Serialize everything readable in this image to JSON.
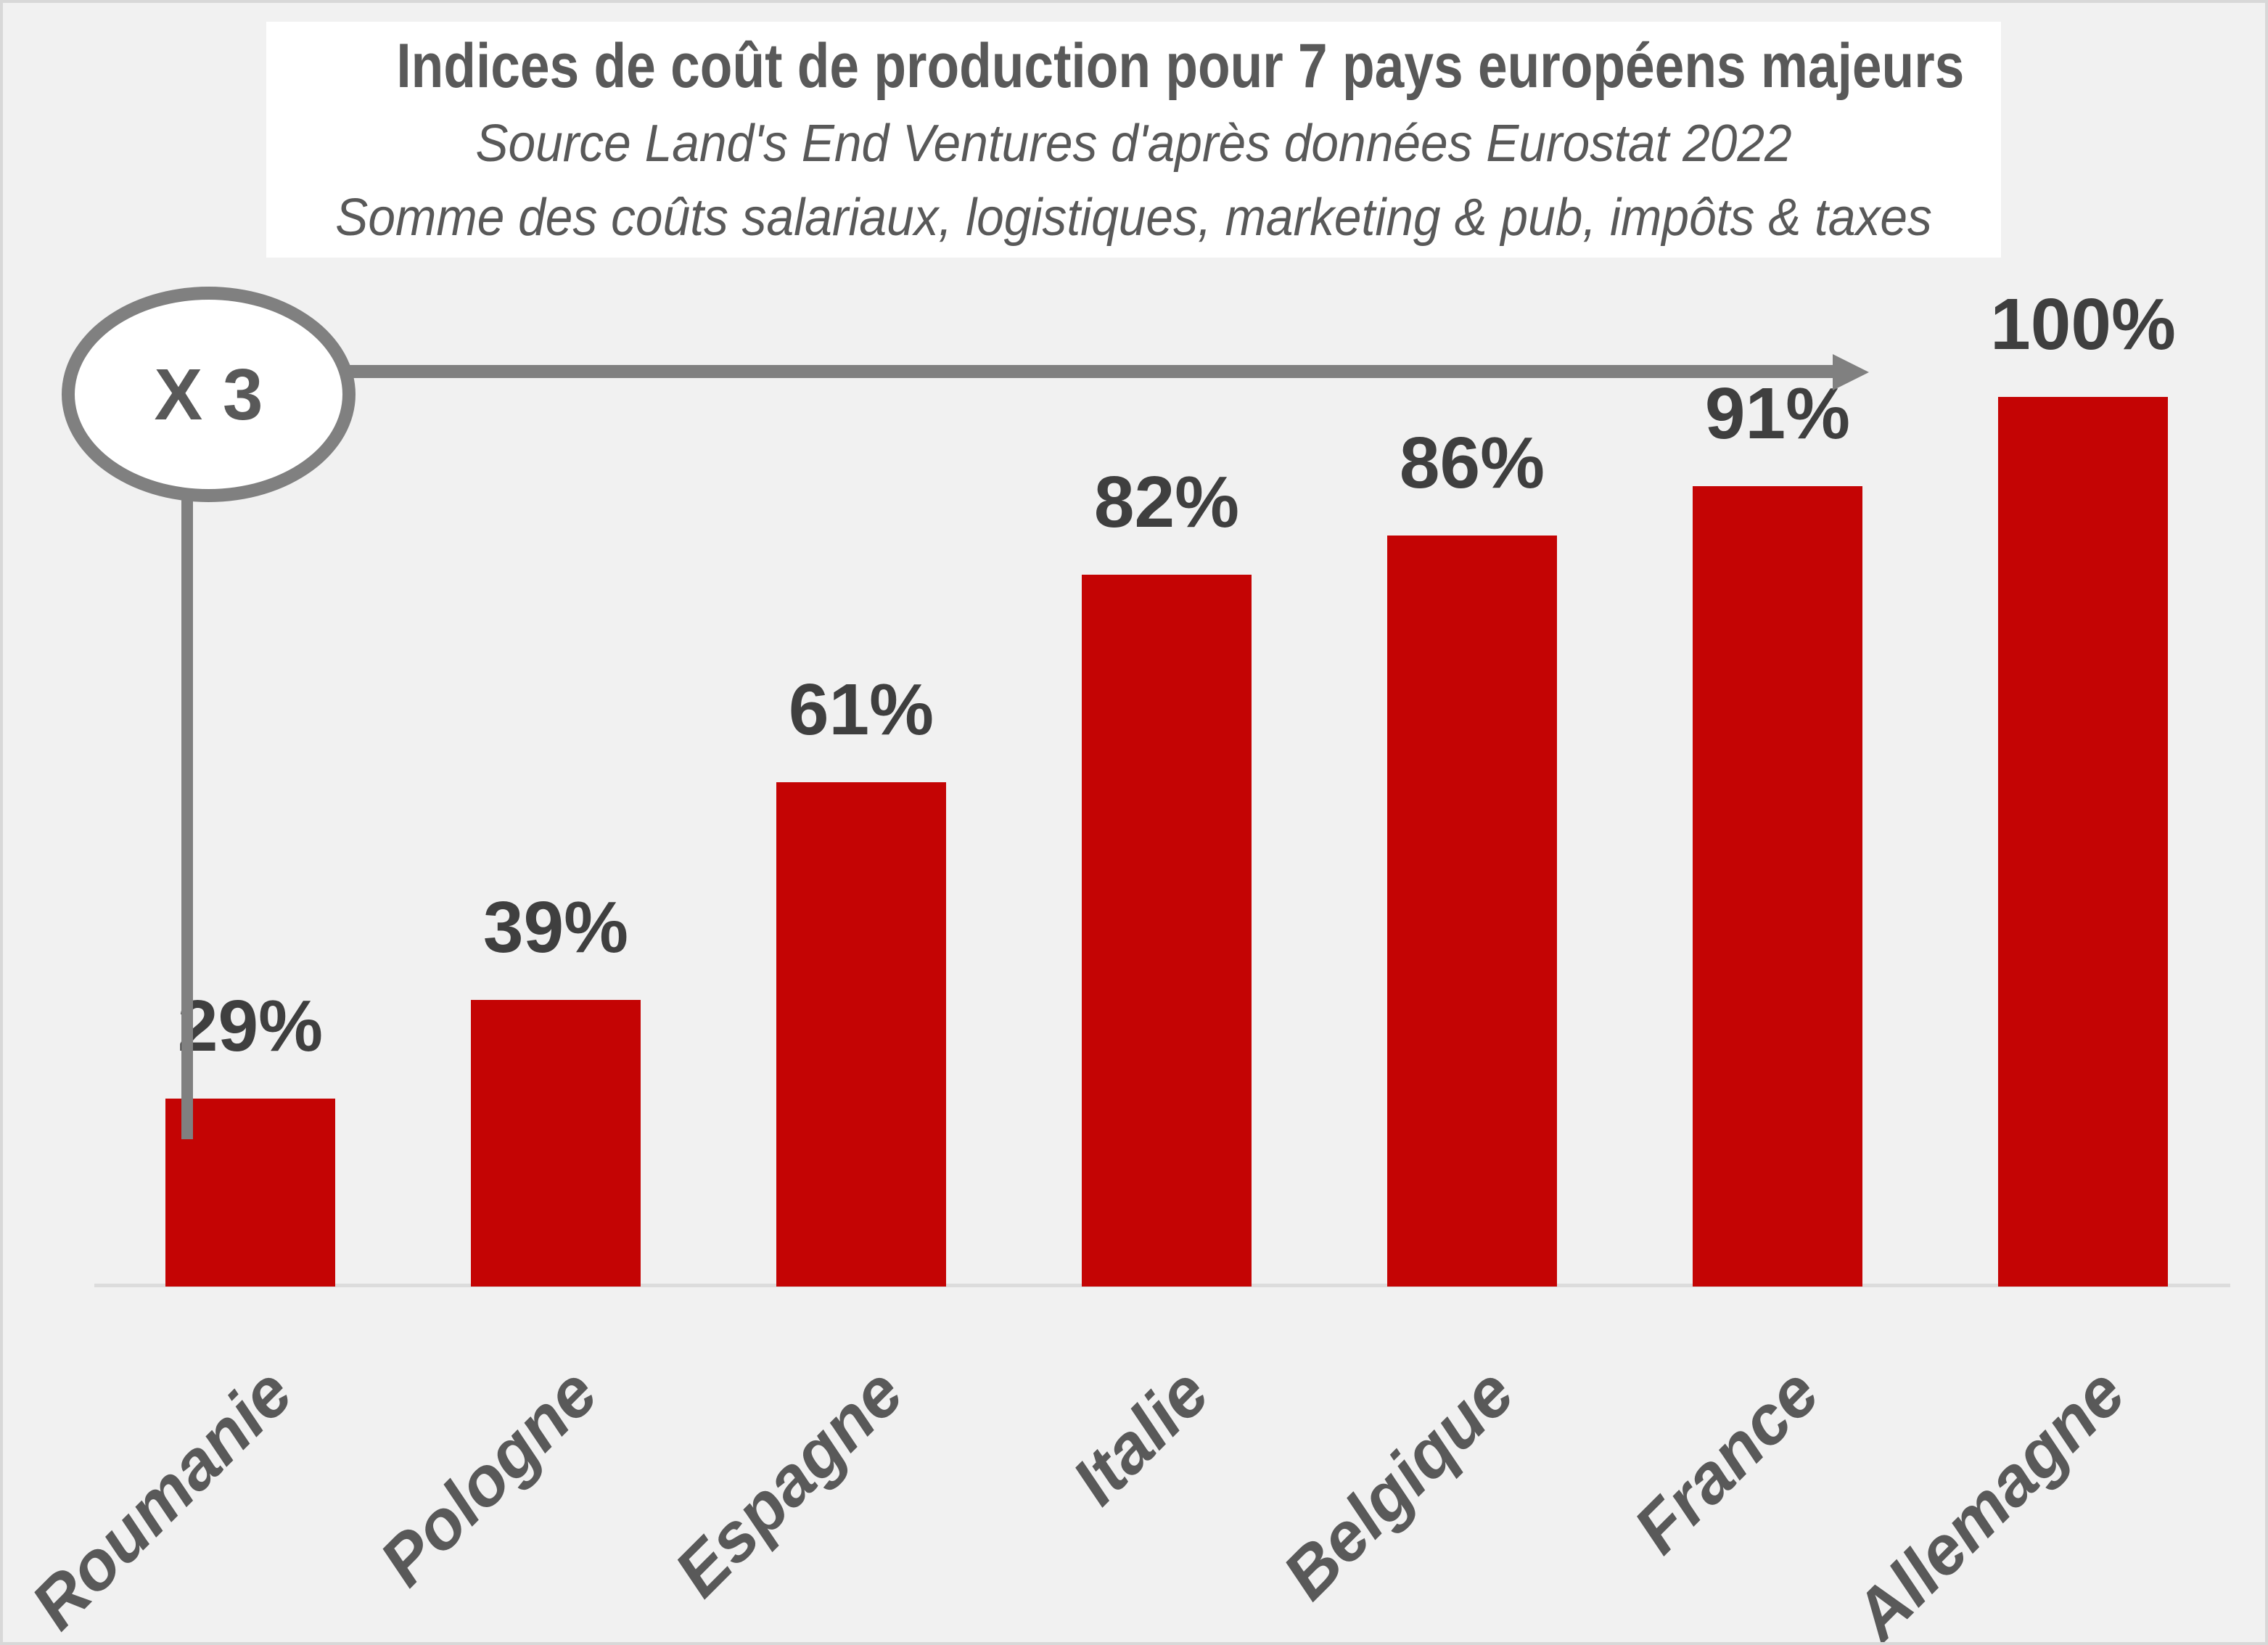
{
  "title": "Indices de coût de production pour 7 pays européens majeurs",
  "subtitle_source": "Source Land's End Ventures d'après données Eurostat 2022",
  "subtitle_detail": "Somme des coûts salariaux, logistiques, marketing & pub, impôts & taxes",
  "annotation": {
    "label": "X 3"
  },
  "colors": {
    "background": "#f1f1f1",
    "frame_border": "#d8d8d8",
    "title_box_background": "#ffffff",
    "title_text": "#595959",
    "bar": "#c40404",
    "value_label_text": "#3f3f3f",
    "country_label_text": "#595959",
    "axis_line": "#dcdcdc",
    "annotation_gray": "#808080"
  },
  "chart_data": {
    "type": "bar",
    "title": "Indices de coût de production pour 7 pays européens majeurs",
    "subtitle": "Source Land's End Ventures d'après données Eurostat 2022 — Somme des coûts salariaux, logistiques, marketing & pub, impôts & taxes",
    "categories": [
      "Roumanie",
      "Pologne",
      "Espagne",
      "Italie",
      "Belgique",
      "France",
      "Allemagne"
    ],
    "values": [
      29,
      39,
      61,
      82,
      86,
      91,
      100
    ],
    "value_labels": [
      "29%",
      "39%",
      "61%",
      "82%",
      "86%",
      "91%",
      "100%"
    ],
    "xlabel": "",
    "ylabel": "",
    "ylim": [
      10,
      100
    ],
    "grid": false,
    "legend": false,
    "bar_color": "#c40404",
    "annotations": [
      {
        "text": "X 3",
        "shape": "ellipse",
        "note": "multiplier from Roumanie (29%) to Allemagne (100%), arrow pointing to highest bar"
      }
    ]
  }
}
